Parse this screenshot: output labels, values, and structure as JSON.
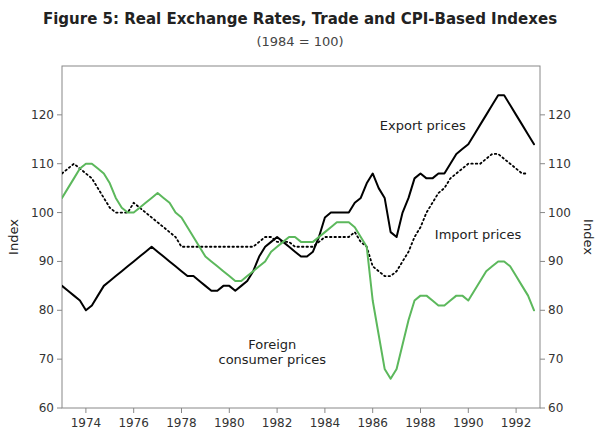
{
  "chart_data": {
    "type": "line",
    "title": "Figure 5: Real Exchange Rates, Trade and CPI-Based Indexes",
    "subtitle": "(1984 = 100)",
    "ylabel": "Index",
    "y2label": "Index",
    "xlim": [
      1973.0,
      1993.0
    ],
    "xticks": [
      1974,
      1976,
      1978,
      1980,
      1982,
      1984,
      1986,
      1988,
      1990,
      1992
    ],
    "ylim": [
      60,
      130
    ],
    "yticks": [
      60,
      70,
      80,
      90,
      100,
      110,
      120
    ],
    "y2lim": [
      60,
      130
    ],
    "y2ticks": [
      60,
      70,
      80,
      90,
      100,
      110,
      120
    ],
    "grid": false,
    "series": [
      {
        "color": "#000000",
        "line_style": "solid",
        "x": [
          1973.0,
          1973.25,
          1973.5,
          1973.75,
          1974.0,
          1974.25,
          1974.5,
          1974.75,
          1975.0,
          1975.25,
          1975.5,
          1975.75,
          1976.0,
          1976.25,
          1976.5,
          1976.75,
          1977.0,
          1977.25,
          1977.5,
          1977.75,
          1978.0,
          1978.25,
          1978.5,
          1978.75,
          1979.0,
          1979.25,
          1979.5,
          1979.75,
          1980.0,
          1980.25,
          1980.5,
          1980.75,
          1981.0,
          1981.25,
          1981.5,
          1981.75,
          1982.0,
          1982.25,
          1982.5,
          1982.75,
          1983.0,
          1983.25,
          1983.5,
          1983.75,
          1984.0,
          1984.25,
          1984.5,
          1984.75,
          1985.0,
          1985.25,
          1985.5,
          1985.75,
          1986.0,
          1986.25,
          1986.5,
          1986.75,
          1987.0,
          1987.25,
          1987.5,
          1987.75,
          1988.0,
          1988.25,
          1988.5,
          1988.75,
          1989.0,
          1989.25,
          1989.5,
          1989.75,
          1990.0,
          1990.25,
          1990.5,
          1990.75,
          1991.0,
          1991.25,
          1991.5,
          1991.75,
          1992.0,
          1992.25,
          1992.5,
          1992.75
        ],
        "values": [
          85,
          84,
          83,
          82,
          80,
          81,
          83,
          85,
          86,
          87,
          88,
          89,
          90,
          91,
          92,
          93,
          92,
          91,
          90,
          89,
          88,
          87,
          87,
          86,
          85,
          84,
          84,
          85,
          85,
          84,
          85,
          86,
          88,
          91,
          93,
          94,
          95,
          94,
          93,
          92,
          91,
          91,
          92,
          95,
          99,
          100,
          100,
          100,
          100,
          102,
          103,
          106,
          108,
          105,
          103,
          96,
          95,
          100,
          103,
          107,
          108,
          107,
          107,
          108,
          108,
          110,
          112,
          113,
          114,
          116,
          118,
          120,
          122,
          124,
          124,
          122,
          120,
          118,
          116,
          114
        ]
      },
      {
        "color": "#000000",
        "line_style": "dotted",
        "x": [
          1973.0,
          1973.25,
          1973.5,
          1973.75,
          1974.0,
          1974.25,
          1974.5,
          1974.75,
          1975.0,
          1975.25,
          1975.5,
          1975.75,
          1976.0,
          1976.25,
          1976.5,
          1976.75,
          1977.0,
          1977.25,
          1977.5,
          1977.75,
          1978.0,
          1978.25,
          1978.5,
          1978.75,
          1979.0,
          1979.25,
          1979.5,
          1979.75,
          1980.0,
          1980.25,
          1980.5,
          1980.75,
          1981.0,
          1981.25,
          1981.5,
          1981.75,
          1982.0,
          1982.25,
          1982.5,
          1982.75,
          1983.0,
          1983.25,
          1983.5,
          1983.75,
          1984.0,
          1984.25,
          1984.5,
          1984.75,
          1985.0,
          1985.25,
          1985.5,
          1985.75,
          1986.0,
          1986.25,
          1986.5,
          1986.75,
          1987.0,
          1987.25,
          1987.5,
          1987.75,
          1988.0,
          1988.25,
          1988.5,
          1988.75,
          1989.0,
          1989.25,
          1989.5,
          1989.75,
          1990.0,
          1990.25,
          1990.5,
          1990.75,
          1991.0,
          1991.25,
          1991.5,
          1991.75,
          1992.0,
          1992.25,
          1992.5
        ],
        "values": [
          108,
          109,
          110,
          109,
          108,
          107,
          105,
          103,
          101,
          100,
          100,
          100,
          102,
          101,
          100,
          99,
          98,
          97,
          96,
          95,
          93,
          93,
          93,
          93,
          93,
          93,
          93,
          93,
          93,
          93,
          93,
          93,
          93,
          94,
          95,
          95,
          94,
          94,
          94,
          93,
          93,
          93,
          93,
          94,
          95,
          95,
          95,
          95,
          95,
          96,
          94,
          93,
          89,
          88,
          87,
          87,
          88,
          90,
          92,
          95,
          97,
          100,
          102,
          104,
          105,
          107,
          108,
          109,
          110,
          110,
          110,
          111,
          112,
          112,
          111,
          110,
          109,
          108,
          108
        ]
      },
      {
        "color": "#5cb85c",
        "line_style": "solid",
        "x": [
          1973.0,
          1973.25,
          1973.5,
          1973.75,
          1974.0,
          1974.25,
          1974.5,
          1974.75,
          1975.0,
          1975.25,
          1975.5,
          1975.75,
          1976.0,
          1976.25,
          1976.5,
          1976.75,
          1977.0,
          1977.25,
          1977.5,
          1977.75,
          1978.0,
          1978.25,
          1978.5,
          1978.75,
          1979.0,
          1979.25,
          1979.5,
          1979.75,
          1980.0,
          1980.25,
          1980.5,
          1980.75,
          1981.0,
          1981.25,
          1981.5,
          1981.75,
          1982.0,
          1982.25,
          1982.5,
          1982.75,
          1983.0,
          1983.25,
          1983.5,
          1983.75,
          1984.0,
          1984.25,
          1984.5,
          1984.75,
          1985.0,
          1985.25,
          1985.5,
          1985.75,
          1986.0,
          1986.25,
          1986.5,
          1986.75,
          1987.0,
          1987.25,
          1987.5,
          1987.75,
          1988.0,
          1988.25,
          1988.5,
          1988.75,
          1989.0,
          1989.25,
          1989.5,
          1989.75,
          1990.0,
          1990.25,
          1990.5,
          1990.75,
          1991.0,
          1991.25,
          1991.5,
          1991.75,
          1992.0,
          1992.25,
          1992.5,
          1992.75
        ],
        "values": [
          103,
          105,
          107,
          109,
          110,
          110,
          109,
          108,
          106,
          103,
          101,
          100,
          100,
          101,
          102,
          103,
          104,
          103,
          102,
          100,
          99,
          97,
          95,
          93,
          91,
          90,
          89,
          88,
          87,
          86,
          86,
          87,
          88,
          89,
          90,
          92,
          93,
          94,
          95,
          95,
          94,
          94,
          94,
          95,
          96,
          97,
          98,
          98,
          98,
          97,
          95,
          93,
          82,
          75,
          68,
          66,
          68,
          73,
          78,
          82,
          83,
          83,
          82,
          81,
          81,
          82,
          83,
          83,
          82,
          84,
          86,
          88,
          89,
          90,
          90,
          89,
          87,
          85,
          83,
          80
        ]
      }
    ],
    "annotations": [
      {
        "text": "Export prices",
        "x": 1986.3,
        "y": 117
      },
      {
        "text": "Import prices",
        "x": 1988.6,
        "y": 94.5
      },
      {
        "text": "Foreign\nconsumer prices",
        "x": 1981.8,
        "y": 69
      }
    ]
  }
}
